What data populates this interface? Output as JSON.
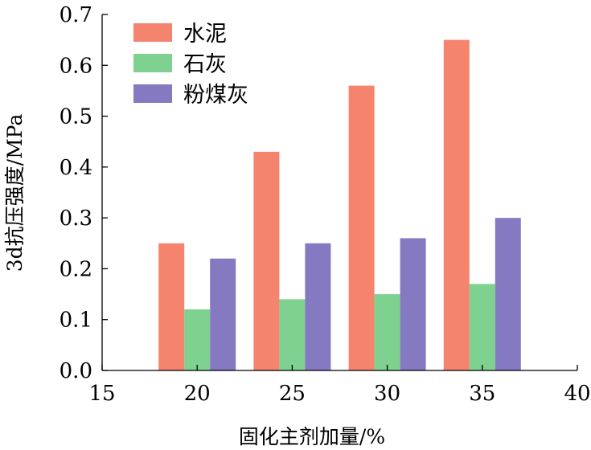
{
  "chart_data": {
    "type": "bar",
    "title": "",
    "xlabel": "固化主剂加量/%",
    "ylabel": "3d抗压强度/MPa",
    "xlim": [
      15,
      40
    ],
    "ylim": [
      0,
      0.7
    ],
    "x_ticks": [
      "15",
      "20",
      "25",
      "30",
      "35",
      "40"
    ],
    "y_ticks": [
      "0.0",
      "0.1",
      "0.2",
      "0.3",
      "0.4",
      "0.5",
      "0.6",
      "0.7"
    ],
    "x": [
      20,
      25,
      30,
      35
    ],
    "series": [
      {
        "name": "水泥",
        "color": "#F4846E",
        "values": [
          0.25,
          0.43,
          0.56,
          0.65
        ]
      },
      {
        "name": "石灰",
        "color": "#7FD18F",
        "values": [
          0.12,
          0.14,
          0.15,
          0.17
        ]
      },
      {
        "name": "粉煤灰",
        "color": "#8579C2",
        "values": [
          0.22,
          0.25,
          0.26,
          0.3
        ]
      }
    ],
    "legend_position": "top-left",
    "grid": false
  }
}
